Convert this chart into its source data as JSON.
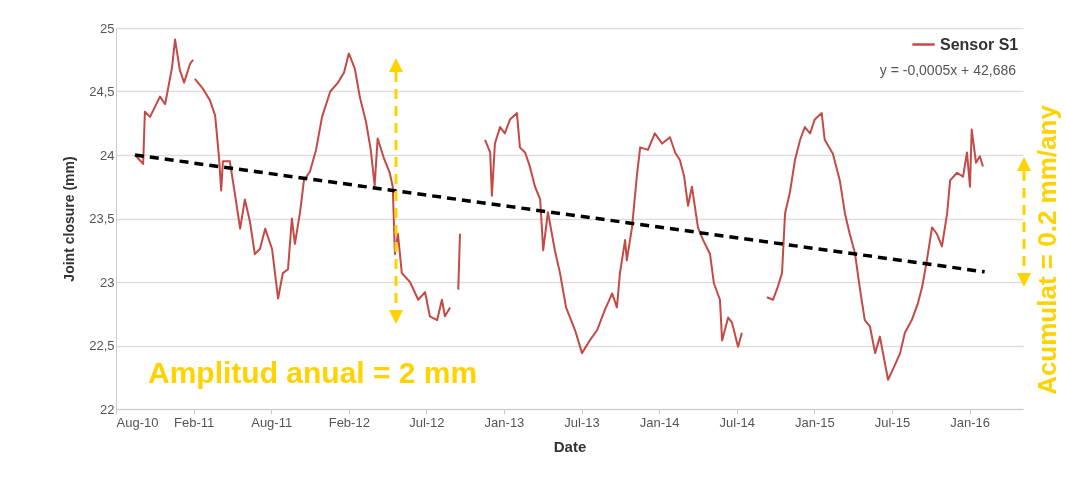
{
  "chart_data": {
    "type": "line",
    "xlabel": "Date",
    "ylabel": "Joint closure (mm)",
    "xlim": [
      "2010-08-10",
      "2016-05-14"
    ],
    "xticks": [
      {
        "value": "2010-08-10",
        "label": "Aug-10"
      },
      {
        "value": "2011-02-06",
        "label": "Feb-11"
      },
      {
        "value": "2011-08-05",
        "label": "Aug-11"
      },
      {
        "value": "2012-02-01",
        "label": "Feb-12"
      },
      {
        "value": "2012-07-30",
        "label": "Jul-12"
      },
      {
        "value": "2013-01-26",
        "label": "Jan-13"
      },
      {
        "value": "2013-07-25",
        "label": "Jul-13"
      },
      {
        "value": "2014-01-21",
        "label": "Jan-14"
      },
      {
        "value": "2014-07-20",
        "label": "Jul-14"
      },
      {
        "value": "2015-01-16",
        "label": "Jan-15"
      },
      {
        "value": "2015-07-15",
        "label": "Jul-15"
      },
      {
        "value": "2016-01-11",
        "label": "Jan-16"
      }
    ],
    "ylim": [
      22,
      25
    ],
    "yticks": [
      22,
      {
        "value": 22.5,
        "label": "22,5"
      },
      23,
      {
        "value": 23.5,
        "label": "23,5"
      },
      24,
      {
        "value": 24.5,
        "label": "24,5"
      },
      25
    ],
    "grid": "y",
    "legend": "top right",
    "series": [
      {
        "name": "Sensor S1",
        "color": "#c44a45",
        "x": [
          "2010-09-23",
          "2010-10-12",
          "2010-10-16",
          "2010-10-28",
          "2010-11-20",
          "2010-12-02",
          "2010-12-18",
          "2010-12-25",
          "2011-01-05",
          "2011-01-15",
          "2011-01-29",
          "2011-02-05",
          "2011-02-07",
          "2011-02-09",
          "2011-02-28",
          "2011-03-16",
          "2011-03-28",
          "2011-04-06",
          "2011-04-11",
          "2011-04-15",
          "2011-05-01",
          "2011-05-13",
          "2011-05-25",
          "2011-06-05",
          "2011-06-17",
          "2011-06-28",
          "2011-07-10",
          "2011-07-22",
          "2011-08-07",
          "2011-08-21",
          "2011-09-01",
          "2011-09-13",
          "2011-09-22",
          "2011-09-29",
          "2011-10-11",
          "2011-10-20",
          "2011-11-03",
          "2011-11-17",
          "2011-12-01",
          "2011-12-20",
          "2012-01-07",
          "2012-01-21",
          "2012-02-01",
          "2012-02-15",
          "2012-02-27",
          "2012-03-12",
          "2012-03-23",
          "2012-04-01",
          "2012-04-08",
          "2012-04-22",
          "2012-05-06",
          "2012-05-13",
          "2012-05-18",
          "2012-05-25",
          "2012-06-03",
          "2012-06-22",
          "2012-07-11",
          "2012-07-27",
          "2012-08-07",
          "2012-08-24",
          "2012-09-04",
          "2012-09-11",
          "2012-09-23",
          "2012-10-02",
          "2012-10-12",
          "2012-10-16",
          "2012-11-13",
          "2012-12-13",
          "2012-12-25",
          "2012-12-29",
          "2013-01-05",
          "2013-01-17",
          "2013-01-28",
          "2013-02-09",
          "2013-02-25",
          "2013-03-04",
          "2013-03-16",
          "2013-03-27",
          "2013-04-08",
          "2013-04-20",
          "2013-04-27",
          "2013-05-08",
          "2013-05-24",
          "2013-06-05",
          "2013-06-19",
          "2013-07-10",
          "2013-07-26",
          "2013-08-13",
          "2013-08-30",
          "2013-09-17",
          "2013-10-04",
          "2013-10-15",
          "2013-10-22",
          "2013-11-03",
          "2013-11-07",
          "2013-11-19",
          "2013-12-01",
          "2013-12-08",
          "2013-12-26",
          "2014-01-11",
          "2014-01-28",
          "2014-02-15",
          "2014-02-27",
          "2014-03-10",
          "2014-03-20",
          "2014-03-29",
          "2014-04-07",
          "2014-04-21",
          "2014-05-03",
          "2014-05-19",
          "2014-05-28",
          "2014-06-11",
          "2014-06-16",
          "2014-06-30",
          "2014-07-09",
          "2014-07-23",
          "2014-08-01",
          "2014-08-31",
          "2014-09-28",
          "2014-10-12",
          "2014-10-23",
          "2014-11-02",
          "2014-11-09",
          "2014-11-20",
          "2014-12-02",
          "2014-12-14",
          "2014-12-25",
          "2015-01-06",
          "2015-01-17",
          "2015-02-02",
          "2015-02-09",
          "2015-02-28",
          "2015-03-16",
          "2015-03-28",
          "2015-04-08",
          "2015-04-20",
          "2015-05-02",
          "2015-05-13",
          "2015-05-25",
          "2015-06-06",
          "2015-06-17",
          "2015-07-06",
          "2015-07-17",
          "2015-08-03",
          "2015-08-14",
          "2015-08-30",
          "2015-09-13",
          "2015-09-23",
          "2015-10-04",
          "2015-10-16",
          "2015-10-27",
          "2015-11-08",
          "2015-11-20",
          "2015-11-27",
          "2015-12-13",
          "2015-12-27",
          "2016-01-05",
          "2016-01-12",
          "2016-01-16",
          "2016-01-26",
          "2016-02-04",
          "2016-02-11"
        ],
        "values": [
          24.0,
          23.93,
          24.34,
          24.3,
          24.46,
          24.4,
          24.69,
          24.91,
          24.67,
          24.57,
          24.72,
          24.75,
          null,
          24.6,
          24.52,
          24.43,
          24.31,
          23.98,
          23.72,
          23.95,
          23.95,
          23.69,
          23.42,
          23.65,
          23.47,
          23.22,
          23.26,
          23.42,
          23.26,
          22.87,
          23.07,
          23.1,
          23.5,
          23.3,
          23.55,
          23.8,
          23.87,
          24.04,
          24.3,
          24.5,
          24.57,
          24.65,
          24.8,
          24.68,
          24.45,
          24.26,
          24.04,
          23.76,
          24.13,
          23.98,
          23.86,
          23.75,
          23.22,
          23.38,
          23.07,
          23.0,
          22.86,
          22.92,
          22.73,
          22.7,
          22.86,
          22.73,
          22.8,
          null,
          22.94,
          23.38,
          null,
          24.12,
          24.02,
          23.68,
          24.09,
          24.22,
          24.17,
          24.28,
          24.33,
          24.06,
          24.02,
          23.91,
          23.75,
          23.65,
          23.25,
          23.55,
          23.25,
          23.07,
          22.8,
          22.62,
          22.44,
          22.54,
          22.62,
          22.78,
          22.91,
          22.8,
          23.07,
          23.33,
          23.17,
          23.43,
          23.86,
          24.06,
          24.04,
          24.17,
          24.09,
          24.14,
          24.02,
          23.96,
          23.83,
          23.6,
          23.75,
          23.43,
          23.33,
          23.22,
          22.99,
          22.86,
          22.54,
          22.72,
          22.68,
          22.49,
          22.6,
          null,
          22.88,
          22.86,
          22.96,
          23.07,
          23.54,
          23.7,
          23.96,
          24.12,
          24.22,
          24.17,
          24.28,
          24.33,
          24.12,
          24.01,
          23.8,
          23.54,
          23.38,
          23.23,
          22.94,
          22.7,
          22.65,
          22.44,
          22.57,
          22.23,
          22.31,
          22.44,
          22.6,
          22.7,
          22.83,
          22.96,
          23.17,
          23.43,
          23.38,
          23.28,
          23.54,
          23.8,
          23.86,
          23.83,
          24.02,
          23.75,
          24.2,
          23.94,
          23.99,
          23.91
        ]
      },
      {
        "color": "#000000",
        "line_style": "dashed",
        "x": [
          "2010-09-23",
          "2016-02-15"
        ],
        "values": [
          24.0,
          23.08
        ]
      }
    ],
    "annotations": [
      "y = -0,0005x + 42,686",
      "Amplitud anual = 2  mm",
      "Acumulat = 0.2  mm/any"
    ]
  }
}
